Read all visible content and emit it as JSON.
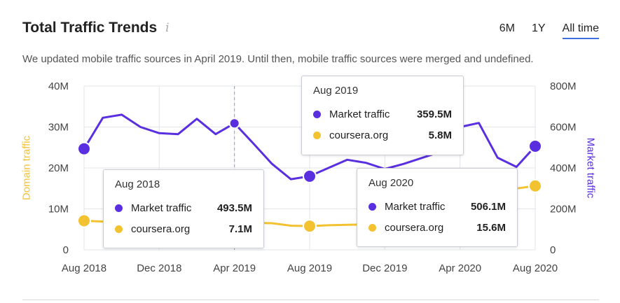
{
  "header": {
    "title": "Total Traffic Trends",
    "info_icon": "info-icon",
    "tabs": [
      {
        "label": "6M",
        "active": false
      },
      {
        "label": "1Y",
        "active": false
      },
      {
        "label": "All time",
        "active": true
      }
    ],
    "notice": "We updated mobile traffic sources in April 2019. Until then, mobile traffic sources were merged and undefined."
  },
  "colors": {
    "market": "#5a2fe0",
    "domain": "#f2c231",
    "grid": "#e3e5ea",
    "tab_active": "#3d6fe0"
  },
  "chart_data": {
    "type": "line",
    "x_labels": [
      "Aug 2018",
      "Dec 2018",
      "Apr 2019",
      "Aug 2019",
      "Dec 2019",
      "Apr 2020",
      "Aug 2020"
    ],
    "y_left": {
      "title": "Domain traffic",
      "ticks": [
        "40M",
        "30M",
        "20M",
        "10M",
        "0"
      ],
      "range": [
        0,
        40
      ]
    },
    "y_right": {
      "title": "Market traffic",
      "ticks": [
        "800M",
        "600M",
        "400M",
        "200M",
        "0"
      ],
      "range": [
        0,
        800
      ]
    },
    "series": [
      {
        "name": "Market traffic",
        "axis": "right",
        "unit": "M",
        "x": [
          "2018-08",
          "2018-09",
          "2018-10",
          "2018-11",
          "2018-12",
          "2019-01",
          "2019-02",
          "2019-03",
          "2019-04",
          "2019-05",
          "2019-06",
          "2019-07",
          "2019-08",
          "2019-09",
          "2019-10",
          "2019-11",
          "2019-12",
          "2020-01",
          "2020-02",
          "2020-03",
          "2020-04",
          "2020-05",
          "2020-06",
          "2020-07",
          "2020-08"
        ],
        "values": [
          493.5,
          645,
          660,
          600,
          570,
          565,
          640,
          565,
          618,
          520,
          420,
          345,
          359.5,
          400,
          440,
          425,
          395,
          420,
          450,
          480,
          600,
          620,
          450,
          405,
          506.1
        ]
      },
      {
        "name": "coursera.org",
        "axis": "left",
        "unit": "M",
        "x": [
          "2018-08",
          "2018-09",
          "2018-10",
          "2018-11",
          "2018-12",
          "2019-01",
          "2019-02",
          "2019-03",
          "2019-04",
          "2019-05",
          "2019-06",
          "2019-07",
          "2019-08",
          "2019-09",
          "2019-10",
          "2019-11",
          "2019-12",
          "2020-01",
          "2020-02",
          "2020-03",
          "2020-04",
          "2020-05",
          "2020-06",
          "2020-07",
          "2020-08"
        ],
        "values": [
          7.1,
          6.9,
          6.8,
          6.8,
          6.7,
          6.7,
          6.8,
          6.8,
          6.8,
          6.6,
          6.5,
          5.9,
          5.8,
          6.0,
          6.1,
          6.2,
          6.3,
          6.5,
          7.0,
          8.0,
          10.0,
          12.0,
          14.0,
          15.0,
          15.6
        ]
      }
    ],
    "markers": [
      "2018-08",
      "2019-04",
      "2019-08",
      "2020-08"
    ],
    "dashed_line": "2019-04",
    "tooltips": [
      {
        "title": "Aug 2018",
        "rows": [
          {
            "name": "Market traffic",
            "value": "493.5M"
          },
          {
            "name": "coursera.org",
            "value": "7.1M"
          }
        ]
      },
      {
        "title": "Aug 2019",
        "rows": [
          {
            "name": "Market traffic",
            "value": "359.5M"
          },
          {
            "name": "coursera.org",
            "value": "5.8M"
          }
        ]
      },
      {
        "title": "Aug 2020",
        "rows": [
          {
            "name": "Market traffic",
            "value": "506.1M"
          },
          {
            "name": "coursera.org",
            "value": "15.6M"
          }
        ]
      }
    ]
  }
}
